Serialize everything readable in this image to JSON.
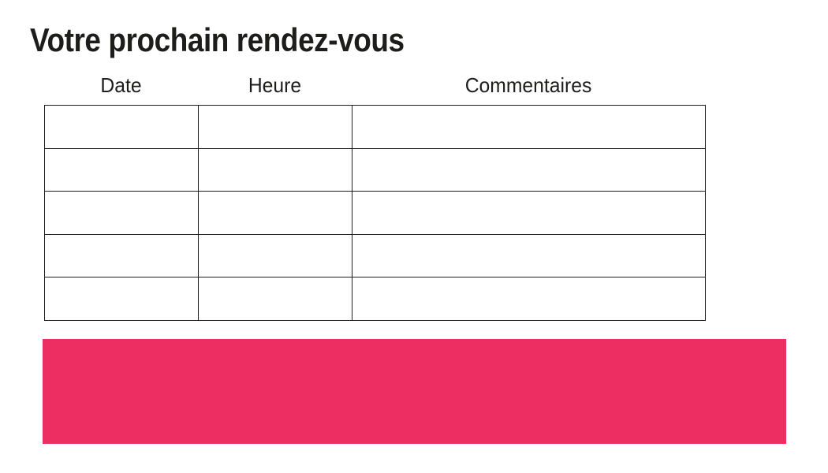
{
  "title": "Votre prochain rendez-vous",
  "colors": {
    "accent": "#ed2e63",
    "ink": "#1d1d1b",
    "background": "#ffffff"
  },
  "table": {
    "columns": [
      {
        "label": "Date"
      },
      {
        "label": "Heure"
      },
      {
        "label": "Commentaires"
      }
    ],
    "rows": [
      [
        "",
        "",
        ""
      ],
      [
        "",
        "",
        ""
      ],
      [
        "",
        "",
        ""
      ],
      [
        "",
        "",
        ""
      ],
      [
        "",
        "",
        ""
      ]
    ]
  }
}
